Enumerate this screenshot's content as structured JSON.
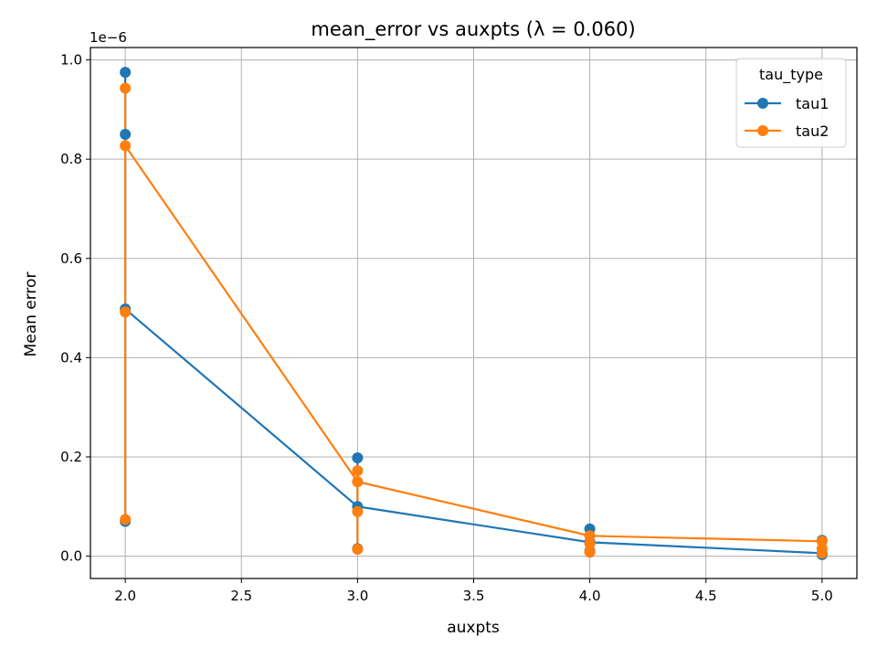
{
  "chart_data": {
    "type": "line",
    "title": "mean_error vs auxpts (λ = 0.060)",
    "xlabel": "auxpts",
    "ylabel": "Mean error",
    "y_offset_label": "1e−6",
    "xlim": [
      1.85,
      5.15
    ],
    "ylim": [
      -0.045,
      1.025
    ],
    "x_ticks": [
      2.0,
      2.5,
      3.0,
      3.5,
      4.0,
      4.5,
      5.0
    ],
    "x_tick_labels": [
      "2.0",
      "2.5",
      "3.0",
      "3.5",
      "4.0",
      "4.5",
      "5.0"
    ],
    "y_ticks": [
      0.0,
      0.2,
      0.4,
      0.6,
      0.8,
      1.0
    ],
    "y_tick_labels": [
      "0.0",
      "0.2",
      "0.4",
      "0.6",
      "0.8",
      "1.0"
    ],
    "grid": true,
    "legend": {
      "title": "tau_type",
      "placement": "top-right"
    },
    "series": [
      {
        "name": "tau1",
        "color": "#1f77b4",
        "x": [
          2,
          2,
          2,
          2,
          3,
          3,
          3,
          4,
          4,
          4,
          5,
          5,
          5
        ],
        "y": [
          0.975,
          0.85,
          0.498,
          0.07,
          0.198,
          0.1,
          0.015,
          0.055,
          0.028,
          0.01,
          0.032,
          0.006,
          0.003
        ],
        "line_x": [
          2,
          3,
          4,
          5
        ],
        "line_y": [
          0.498,
          0.1,
          0.028,
          0.006
        ]
      },
      {
        "name": "tau2",
        "color": "#ff7f0e",
        "x": [
          2,
          2,
          2,
          2,
          3,
          3,
          3,
          3,
          4,
          4,
          4,
          5,
          5,
          5
        ],
        "y": [
          0.943,
          0.827,
          0.492,
          0.074,
          0.172,
          0.15,
          0.09,
          0.014,
          0.041,
          0.025,
          0.008,
          0.03,
          0.015,
          0.006
        ],
        "line_x": [
          2,
          3,
          4,
          5
        ],
        "line_y": [
          0.827,
          0.15,
          0.041,
          0.03
        ]
      }
    ]
  }
}
